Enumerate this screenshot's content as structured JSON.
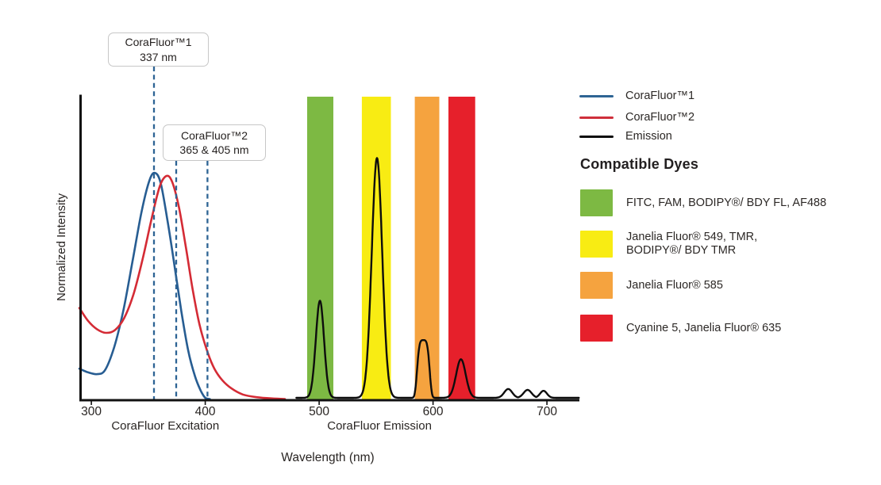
{
  "figure": {
    "callout1": {
      "line1": "CoraFluor™1",
      "line2": "337 nm"
    },
    "callout2": {
      "line1": "CoraFluor™2",
      "line2": "365 & 405 nm"
    }
  },
  "legend": {
    "items": [
      {
        "label": "CoraFluor™1",
        "color": "#2e6494"
      },
      {
        "label": "CoraFluor™2",
        "color": "#cf2f3b"
      },
      {
        "label": "Emission",
        "color": "#0d0d0d"
      }
    ]
  },
  "compatible_dyes": {
    "heading": "Compatible Dyes",
    "items": [
      {
        "color": "#7db943",
        "label": "FITC, FAM, BODIPY®/ BDY FL, AF488"
      },
      {
        "color": "#f8ec13",
        "label": "Janelia Fluor® 549, TMR,\nBODIPY®/ BDY TMR"
      },
      {
        "color": "#f5a33f",
        "label": "Janelia Fluor® 585"
      },
      {
        "color": "#e6202b",
        "label": "Cyanine 5, Janelia Fluor® 635"
      }
    ]
  },
  "chart_data": {
    "type": "line",
    "title": "",
    "xlabel": "Wavelength (nm)",
    "ylabel": "Normalized Intensity",
    "x_ticks": [
      300,
      400,
      500,
      600,
      700
    ],
    "x_range_nm": [
      289.5,
      728.5
    ],
    "ylim": [
      0,
      1
    ],
    "grid": false,
    "legend_position": "right",
    "section_labels": [
      {
        "text": "CoraFluor Excitation",
        "nm": 365
      },
      {
        "text": "CoraFluor Emission",
        "nm": 553
      }
    ],
    "bands": [
      {
        "name": "green-filter",
        "nm": [
          489.5,
          512.5
        ],
        "color": "#7db943"
      },
      {
        "name": "yellow-filter",
        "nm": [
          537.5,
          563.0
        ],
        "color": "#f8ec13"
      },
      {
        "name": "orange-filter",
        "nm": [
          584.0,
          605.5
        ],
        "color": "#f5a33f"
      },
      {
        "name": "red-filter",
        "nm": [
          613.5,
          637.0
        ],
        "color": "#e6202b"
      }
    ],
    "markers": [
      {
        "label": "CoraFluor™1 337 nm",
        "nm": 355.0
      },
      {
        "label": "CoraFluor™2 365 nm",
        "nm": 374.5
      },
      {
        "label": "CoraFluor™2 405 nm",
        "nm": 402.0
      }
    ],
    "marker_color": "#2d6394",
    "series": [
      {
        "name": "CoraFluor™1 excitation",
        "color": "#275d92",
        "points": [
          [
            289.5,
            0.1
          ],
          [
            297,
            0.088
          ],
          [
            305,
            0.082
          ],
          [
            312,
            0.095
          ],
          [
            320,
            0.17
          ],
          [
            328,
            0.29
          ],
          [
            336,
            0.45
          ],
          [
            344,
            0.615
          ],
          [
            351,
            0.72
          ],
          [
            356,
            0.745
          ],
          [
            361,
            0.71
          ],
          [
            367,
            0.585
          ],
          [
            373,
            0.44
          ],
          [
            379,
            0.29
          ],
          [
            385,
            0.16
          ],
          [
            391,
            0.075
          ],
          [
            396,
            0.028
          ],
          [
            400,
            0.004
          ],
          [
            404,
            0.0
          ]
        ]
      },
      {
        "name": "CoraFluor™2 excitation",
        "color": "#d42b35",
        "points": [
          [
            289.5,
            0.3
          ],
          [
            297,
            0.258
          ],
          [
            305,
            0.23
          ],
          [
            313,
            0.218
          ],
          [
            321,
            0.228
          ],
          [
            329,
            0.268
          ],
          [
            337,
            0.345
          ],
          [
            345,
            0.46
          ],
          [
            353,
            0.595
          ],
          [
            360,
            0.7
          ],
          [
            366,
            0.735
          ],
          [
            371,
            0.715
          ],
          [
            377,
            0.63
          ],
          [
            383,
            0.5
          ],
          [
            389,
            0.36
          ],
          [
            395,
            0.245
          ],
          [
            402,
            0.155
          ],
          [
            408,
            0.1
          ],
          [
            415,
            0.062
          ],
          [
            423,
            0.035
          ],
          [
            433,
            0.015
          ],
          [
            445,
            0.006
          ],
          [
            458,
            0.002
          ],
          [
            470,
            0.0
          ]
        ]
      },
      {
        "name": "Emission",
        "color": "#0d0d0d",
        "range_nm": [
          480,
          728
        ],
        "baseline": 0.004,
        "peaks": [
          {
            "nm": 500.7,
            "h": 0.32,
            "w": 3.6,
            "p": 2
          },
          {
            "nm": 550.8,
            "h": 0.79,
            "w": 4.6,
            "p": 2
          },
          {
            "nm": 591.5,
            "h": 0.19,
            "w": 6.0,
            "p": 4
          },
          {
            "nm": 624.5,
            "h": 0.127,
            "w": 4.2,
            "p": 2
          },
          {
            "nm": 666.0,
            "h": 0.029,
            "w": 3.5,
            "p": 2
          },
          {
            "nm": 683.0,
            "h": 0.026,
            "w": 3.5,
            "p": 2
          },
          {
            "nm": 697.0,
            "h": 0.023,
            "w": 3.0,
            "p": 2
          }
        ]
      }
    ]
  }
}
